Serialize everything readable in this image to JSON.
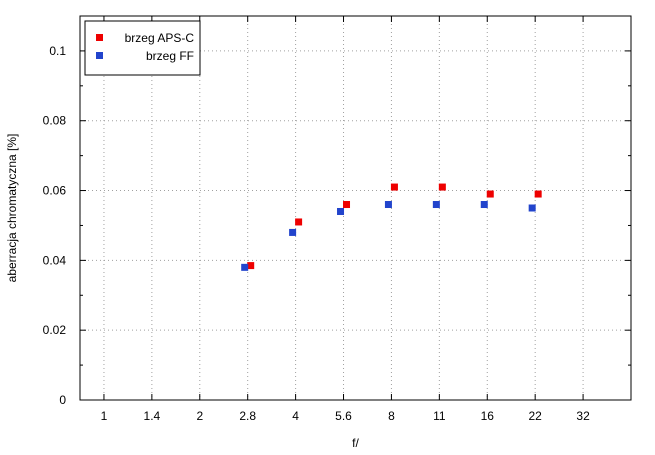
{
  "chart_data": {
    "type": "scatter",
    "title": "",
    "xlabel": "f/",
    "ylabel": "aberracja chromatyczna [%]",
    "categories": [
      "1",
      "1.4",
      "2",
      "2.8",
      "4",
      "5.6",
      "8",
      "11",
      "16",
      "22",
      "32"
    ],
    "ylim": [
      0,
      0.11
    ],
    "yticks": [
      0,
      0.02,
      0.04,
      0.06,
      0.08,
      0.1
    ],
    "ytick_labels": [
      "0",
      "0.02",
      "0.04",
      "0.06",
      "0.08",
      "0.1"
    ],
    "grid": true,
    "legend_position": "top-left",
    "series": [
      {
        "name": "brzeg APS-C",
        "color": "#ee0000",
        "x": [
          "2.8",
          "4",
          "5.6",
          "8",
          "11",
          "16",
          "22"
        ],
        "values": [
          0.0385,
          0.051,
          0.056,
          0.061,
          0.061,
          0.059,
          0.059
        ]
      },
      {
        "name": "brzeg FF",
        "color": "#2244cc",
        "x": [
          "2.8",
          "4",
          "5.6",
          "8",
          "11",
          "16",
          "22"
        ],
        "values": [
          0.038,
          0.048,
          0.054,
          0.056,
          0.056,
          0.056,
          0.055
        ]
      }
    ]
  }
}
